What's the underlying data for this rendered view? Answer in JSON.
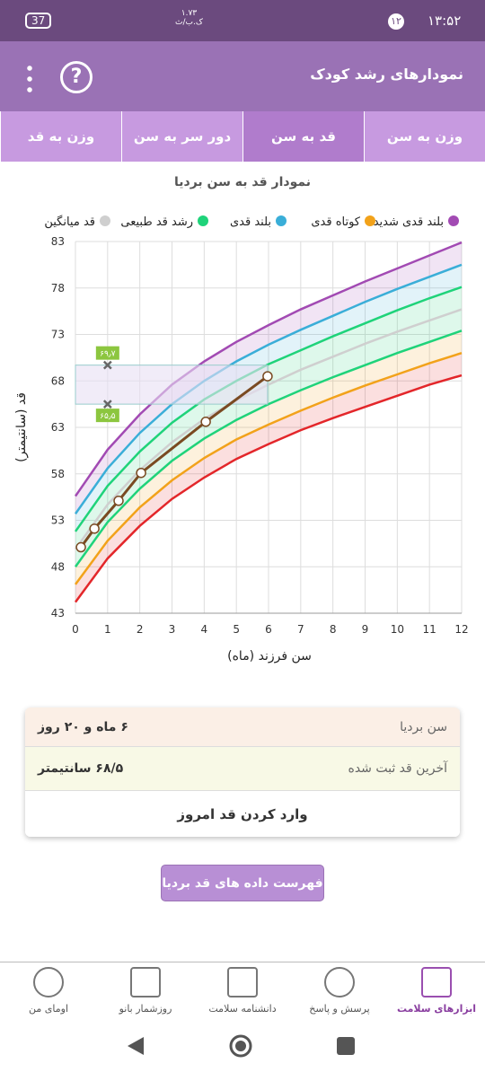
{
  "status_bar": {
    "time": "۱۳:۵۲",
    "notifications": "۱۲",
    "battery": "37",
    "speed": "۱.۷۳",
    "speed_unit": "ک.ب/ث"
  },
  "header": {
    "title": "نمودارهای رشد کودک"
  },
  "tabs": [
    "وزن به سن",
    "قد به سن",
    "دور سر به سن",
    "وزن به قد"
  ],
  "chart_data": {
    "type": "line",
    "title": "نمودار قد به سن بردیا",
    "x_label": "سن فرزند (ماه)",
    "y_label": "قد (سانتیمتر)",
    "x": [
      0,
      1,
      2,
      3,
      4,
      5,
      6,
      7,
      8,
      9,
      10,
      11,
      12
    ],
    "series": [
      {
        "name": "بلند قدی شدید",
        "color": "#a24ab3",
        "values": [
          55.6,
          60.6,
          64.4,
          67.6,
          70.1,
          72.2,
          74.0,
          75.7,
          77.2,
          78.7,
          80.1,
          81.5,
          82.9
        ]
      },
      {
        "name": "کوتاه قدی",
        "color": "#f2a21a",
        "values": [
          46.1,
          50.8,
          54.4,
          57.3,
          59.7,
          61.7,
          63.3,
          64.8,
          66.2,
          67.5,
          68.7,
          69.9,
          71.0
        ]
      },
      {
        "name": "بلند قدی",
        "color": "#3aaed8",
        "values": [
          53.7,
          58.6,
          62.4,
          65.5,
          68.0,
          70.1,
          71.9,
          73.5,
          75.0,
          76.5,
          77.9,
          79.2,
          80.5
        ]
      },
      {
        "name": "رشد قد طبیعی",
        "color": "#1fd37a",
        "values": [
          51.8,
          56.7,
          60.4,
          63.5,
          66.0,
          68.0,
          69.8,
          71.3,
          72.8,
          74.2,
          75.6,
          76.9,
          78.1
        ]
      },
      {
        "name": "قد میانگین",
        "color": "#cfcfcf",
        "values": [
          49.9,
          54.7,
          58.4,
          61.4,
          63.9,
          65.9,
          67.6,
          69.2,
          70.6,
          72.0,
          73.3,
          74.5,
          75.7
        ]
      },
      {
        "color": "#1fd37a",
        "values": [
          48.0,
          52.8,
          56.4,
          59.4,
          61.8,
          63.8,
          65.5,
          67.0,
          68.4,
          69.7,
          71.0,
          72.2,
          73.4
        ]
      },
      {
        "color": "#e3262a",
        "values": [
          44.2,
          48.9,
          52.4,
          55.3,
          57.6,
          59.6,
          61.2,
          62.7,
          64.0,
          65.2,
          66.4,
          67.6,
          68.6
        ]
      }
    ],
    "measurements": {
      "color": "#7a4a22",
      "x": [
        0.17,
        0.59,
        1.34,
        2.04,
        4.05,
        5.97
      ],
      "values": [
        50.1,
        52.1,
        55.1,
        58.1,
        63.6,
        68.5
      ]
    },
    "annotations": [
      {
        "x": 1,
        "y": 69.7,
        "label": "۶۹٫۷"
      },
      {
        "x": 1,
        "y": 65.5,
        "label": "۶۵٫۵"
      }
    ],
    "xlim": [
      0,
      12
    ],
    "xticks": [
      0,
      1,
      2,
      3,
      4,
      5,
      6,
      7,
      8,
      9,
      10,
      11,
      12
    ],
    "ylim": [
      43,
      83
    ],
    "yticks": [
      43,
      48,
      53,
      58,
      63,
      68,
      73,
      78,
      83
    ],
    "grid": true
  },
  "info": {
    "rows": [
      {
        "label": "سن بردیا",
        "value": "۶ ماه و ۲۰ روز"
      },
      {
        "label": "آخرین قد ثبت شده",
        "value": "۶۸/۵ سانتیمتر"
      }
    ],
    "action": "وارد کردن قد امروز"
  },
  "list_button": "فهرست داده های قد بردیا",
  "nav": [
    "ابزارهای سلامت",
    "پرسش و پاسخ",
    "دانشنامه سلامت",
    "روزشمار بانو",
    "اومای من"
  ]
}
